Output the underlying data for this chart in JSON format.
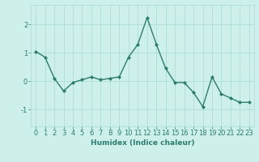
{
  "x": [
    0,
    1,
    2,
    3,
    4,
    5,
    6,
    7,
    8,
    9,
    10,
    11,
    12,
    13,
    14,
    15,
    16,
    17,
    18,
    19,
    20,
    21,
    22,
    23
  ],
  "y": [
    1.05,
    0.85,
    0.1,
    -0.35,
    -0.05,
    0.05,
    0.15,
    0.05,
    0.1,
    0.15,
    0.85,
    1.3,
    2.25,
    1.3,
    0.45,
    -0.05,
    -0.05,
    -0.4,
    -0.9,
    0.15,
    -0.45,
    -0.6,
    -0.75,
    -0.75
  ],
  "line_color": "#2d7d6e",
  "marker": "D",
  "markersize": 2.0,
  "linewidth": 1.0,
  "xlabel": "Humidex (Indice chaleur)",
  "xlabel_fontsize": 6.5,
  "xlabel_fontweight": "bold",
  "bg_color": "#cdf0ea",
  "grid_color": "#aeddd6",
  "tick_fontsize": 6,
  "ylim": [
    -1.6,
    2.7
  ],
  "xlim": [
    -0.5,
    23.5
  ],
  "yticks": [
    -1,
    0,
    1,
    2
  ],
  "xticks": [
    0,
    1,
    2,
    3,
    4,
    5,
    6,
    7,
    8,
    9,
    10,
    11,
    12,
    13,
    14,
    15,
    16,
    17,
    18,
    19,
    20,
    21,
    22,
    23
  ]
}
